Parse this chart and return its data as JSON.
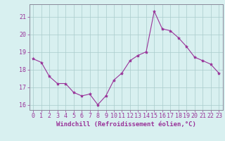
{
  "x": [
    0,
    1,
    2,
    3,
    4,
    5,
    6,
    7,
    8,
    9,
    10,
    11,
    12,
    13,
    14,
    15,
    16,
    17,
    18,
    19,
    20,
    21,
    22,
    23
  ],
  "y": [
    18.6,
    18.4,
    17.6,
    17.2,
    17.2,
    16.7,
    16.5,
    16.6,
    16.0,
    16.5,
    17.4,
    17.8,
    18.5,
    18.8,
    19.0,
    21.3,
    20.3,
    20.2,
    19.8,
    19.3,
    18.7,
    18.5,
    18.3,
    17.8
  ],
  "line_color": "#993399",
  "marker": "*",
  "marker_size": 3,
  "bg_color": "#d8f0f0",
  "grid_color": "#aacccc",
  "xlabel": "Windchill (Refroidissement éolien,°C)",
  "ylim": [
    15.7,
    21.7
  ],
  "yticks": [
    16,
    17,
    18,
    19,
    20,
    21
  ],
  "xticks": [
    0,
    1,
    2,
    3,
    4,
    5,
    6,
    7,
    8,
    9,
    10,
    11,
    12,
    13,
    14,
    15,
    16,
    17,
    18,
    19,
    20,
    21,
    22,
    23
  ],
  "xtick_labels": [
    "0",
    "1",
    "2",
    "3",
    "4",
    "5",
    "6",
    "7",
    "8",
    "9",
    "10",
    "11",
    "12",
    "13",
    "14",
    "15",
    "16",
    "17",
    "18",
    "19",
    "20",
    "21",
    "22",
    "23"
  ],
  "spine_color": "#888899",
  "label_fontsize": 6.5,
  "tick_fontsize": 6
}
